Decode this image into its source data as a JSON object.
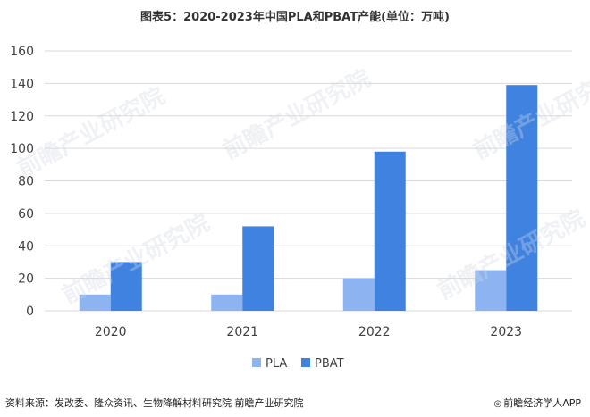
{
  "title": "图表5：2020-2023年中国PLA和PBAT产能(单位：万吨)",
  "source": "资料来源：发改委、隆众资讯、生物降解材料研究院 前瞻产业研究院",
  "brand": "前瞻经济学人APP",
  "brand_icon": "ring-logo-icon",
  "watermark_text": "前瞻产业研究院",
  "colors": {
    "PLA": "#8db4f0",
    "PBAT": "#3f82e0",
    "grid": "#d9d9d9",
    "axis_text": "#404040"
  },
  "chart_data": {
    "type": "bar",
    "categories": [
      "2020",
      "2021",
      "2022",
      "2023"
    ],
    "series": [
      {
        "name": "PLA",
        "values": [
          10,
          10,
          20,
          25
        ]
      },
      {
        "name": "PBAT",
        "values": [
          30,
          52,
          98,
          139
        ]
      }
    ],
    "ylim": [
      0,
      160
    ],
    "yticks": [
      0,
      20,
      40,
      60,
      80,
      100,
      120,
      140,
      160
    ],
    "grid": true,
    "legend": "bottom"
  }
}
